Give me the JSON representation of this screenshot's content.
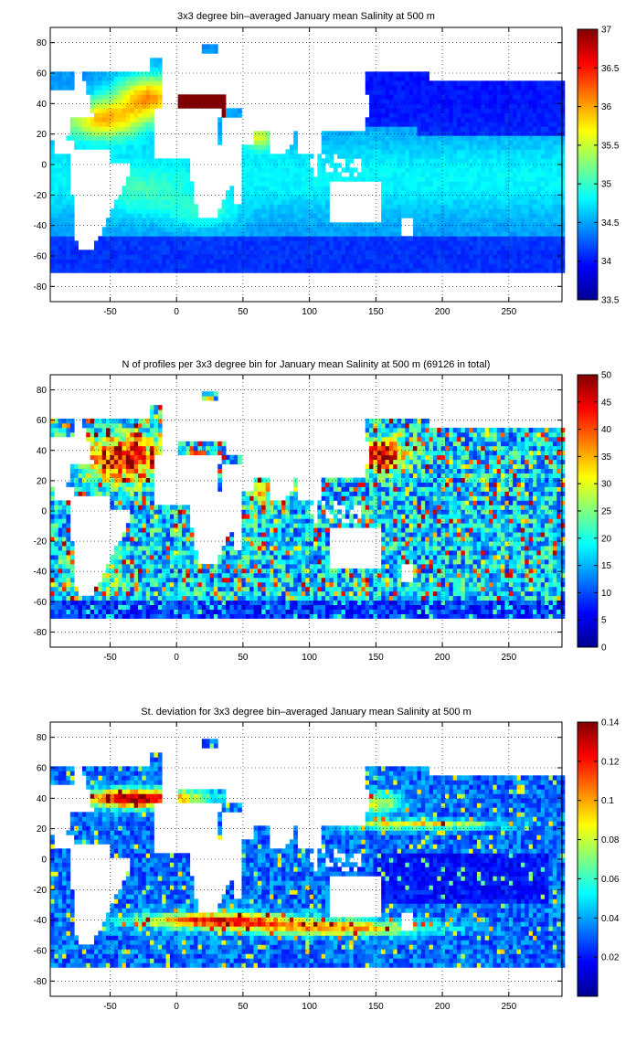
{
  "chart_data": [
    {
      "type": "heatmap",
      "title": "3x3 degree bin–averaged January mean Salinity at 500 m",
      "xlim": [
        -95,
        290
      ],
      "ylim": [
        -90,
        90
      ],
      "x_ticks": [
        -50,
        0,
        50,
        100,
        150,
        200,
        250
      ],
      "y_ticks": [
        80,
        60,
        40,
        20,
        0,
        -20,
        -40,
        -60,
        -80
      ],
      "grid": true,
      "colormap": "jet",
      "colorbar": {
        "min": 33.5,
        "max": 37,
        "ticks": [
          37,
          36.5,
          36,
          35.5,
          35,
          34.5,
          34,
          33.5
        ]
      }
    },
    {
      "type": "heatmap",
      "title": "N of profiles per 3x3 degree bin for January mean Salinity at 500 m (69126 in total)",
      "xlim": [
        -95,
        290
      ],
      "ylim": [
        -90,
        90
      ],
      "x_ticks": [
        -50,
        0,
        50,
        100,
        150,
        200,
        250
      ],
      "y_ticks": [
        80,
        60,
        40,
        20,
        0,
        -20,
        -40,
        -60,
        -80
      ],
      "grid": true,
      "colormap": "jet",
      "colorbar": {
        "min": 0,
        "max": 50,
        "ticks": [
          50,
          45,
          40,
          35,
          30,
          25,
          20,
          15,
          10,
          5,
          0
        ]
      }
    },
    {
      "type": "heatmap",
      "title": "St. deviation for 3x3 degree bin–averaged January mean Salinity at 500 m",
      "xlim": [
        -95,
        290
      ],
      "ylim": [
        -90,
        90
      ],
      "x_ticks": [
        -50,
        0,
        50,
        100,
        150,
        200,
        250
      ],
      "y_ticks": [
        80,
        60,
        40,
        20,
        0,
        -20,
        -40,
        -60,
        -80
      ],
      "grid": true,
      "colormap": "jet",
      "colorbar": {
        "min": 0,
        "max": 0.14,
        "ticks": [
          0.14,
          0.12,
          0.1,
          0.08,
          0.06,
          0.04,
          0.02
        ]
      }
    }
  ]
}
